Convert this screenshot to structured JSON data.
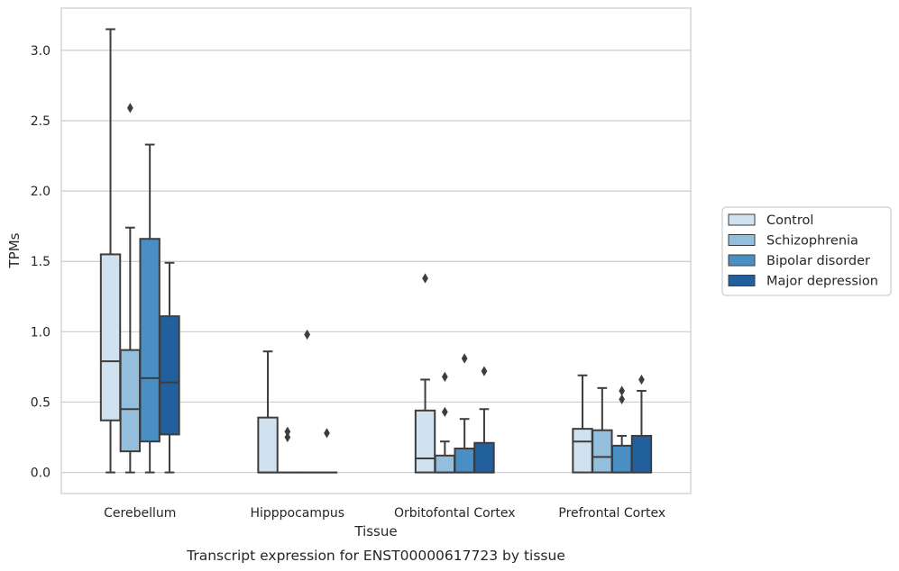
{
  "chart_data": {
    "type": "box",
    "xlabel": "Tissue",
    "ylabel": "TPMs",
    "caption": "Transcript expression for ENST00000617723 by tissue",
    "ylim": [
      -0.15,
      3.3
    ],
    "yticks": [
      0.0,
      0.5,
      1.0,
      1.5,
      2.0,
      2.5,
      3.0
    ],
    "ytick_labels": [
      "0.0",
      "0.5",
      "1.0",
      "1.5",
      "2.0",
      "2.5",
      "3.0"
    ],
    "grid": "horizontal",
    "legend_position": "right",
    "categories": [
      "Cerebellum",
      "Hipppocampus",
      "Orbitofontal Cortex",
      "Prefrontal Cortex"
    ],
    "series": [
      {
        "name": "Control",
        "color": "#d0e1f0",
        "boxes": [
          {
            "category": "Cerebellum",
            "whisker_low": 0.0,
            "q1": 0.37,
            "median": 0.79,
            "q3": 1.55,
            "whisker_high": 3.15,
            "outliers": []
          },
          {
            "category": "Hipppocampus",
            "whisker_low": 0.0,
            "q1": 0.0,
            "median": 0.0,
            "q3": 0.39,
            "whisker_high": 0.86,
            "outliers": []
          },
          {
            "category": "Orbitofontal Cortex",
            "whisker_low": 0.0,
            "q1": 0.0,
            "median": 0.1,
            "q3": 0.44,
            "whisker_high": 0.66,
            "outliers": [
              1.38
            ]
          },
          {
            "category": "Prefrontal Cortex",
            "whisker_low": 0.0,
            "q1": 0.0,
            "median": 0.22,
            "q3": 0.31,
            "whisker_high": 0.69,
            "outliers": []
          }
        ]
      },
      {
        "name": "Schizophrenia",
        "color": "#94bfdc",
        "boxes": [
          {
            "category": "Cerebellum",
            "whisker_low": 0.0,
            "q1": 0.15,
            "median": 0.45,
            "q3": 0.87,
            "whisker_high": 1.74,
            "outliers": [
              2.59
            ]
          },
          {
            "category": "Hipppocampus",
            "whisker_low": 0.0,
            "q1": 0.0,
            "median": 0.0,
            "q3": 0.0,
            "whisker_high": 0.0,
            "outliers": [
              0.25,
              0.29
            ]
          },
          {
            "category": "Orbitofontal Cortex",
            "whisker_low": 0.0,
            "q1": 0.0,
            "median": 0.0,
            "q3": 0.12,
            "whisker_high": 0.22,
            "outliers": [
              0.43,
              0.68
            ]
          },
          {
            "category": "Prefrontal Cortex",
            "whisker_low": 0.0,
            "q1": 0.0,
            "median": 0.11,
            "q3": 0.3,
            "whisker_high": 0.6,
            "outliers": []
          }
        ]
      },
      {
        "name": "Bipolar disorder",
        "color": "#4a8fc4",
        "boxes": [
          {
            "category": "Cerebellum",
            "whisker_low": 0.0,
            "q1": 0.22,
            "median": 0.67,
            "q3": 1.66,
            "whisker_high": 2.33,
            "outliers": []
          },
          {
            "category": "Hipppocampus",
            "whisker_low": 0.0,
            "q1": 0.0,
            "median": 0.0,
            "q3": 0.0,
            "whisker_high": 0.0,
            "outliers": [
              0.98
            ]
          },
          {
            "category": "Orbitofontal Cortex",
            "whisker_low": 0.0,
            "q1": 0.0,
            "median": 0.0,
            "q3": 0.17,
            "whisker_high": 0.38,
            "outliers": [
              0.81
            ]
          },
          {
            "category": "Prefrontal Cortex",
            "whisker_low": 0.0,
            "q1": 0.0,
            "median": 0.0,
            "q3": 0.19,
            "whisker_high": 0.26,
            "outliers": [
              0.52,
              0.58
            ]
          }
        ]
      },
      {
        "name": "Major depression",
        "color": "#22609d",
        "boxes": [
          {
            "category": "Cerebellum",
            "whisker_low": 0.0,
            "q1": 0.27,
            "median": 0.64,
            "q3": 1.11,
            "whisker_high": 1.49,
            "outliers": []
          },
          {
            "category": "Hipppocampus",
            "whisker_low": 0.0,
            "q1": 0.0,
            "median": 0.0,
            "q3": 0.0,
            "whisker_high": 0.0,
            "outliers": [
              0.28
            ]
          },
          {
            "category": "Orbitofontal Cortex",
            "whisker_low": 0.0,
            "q1": 0.0,
            "median": 0.0,
            "q3": 0.21,
            "whisker_high": 0.45,
            "outliers": [
              0.72
            ]
          },
          {
            "category": "Prefrontal Cortex",
            "whisker_low": 0.0,
            "q1": 0.0,
            "median": 0.0,
            "q3": 0.26,
            "whisker_high": 0.58,
            "outliers": [
              0.66
            ]
          }
        ]
      }
    ]
  }
}
